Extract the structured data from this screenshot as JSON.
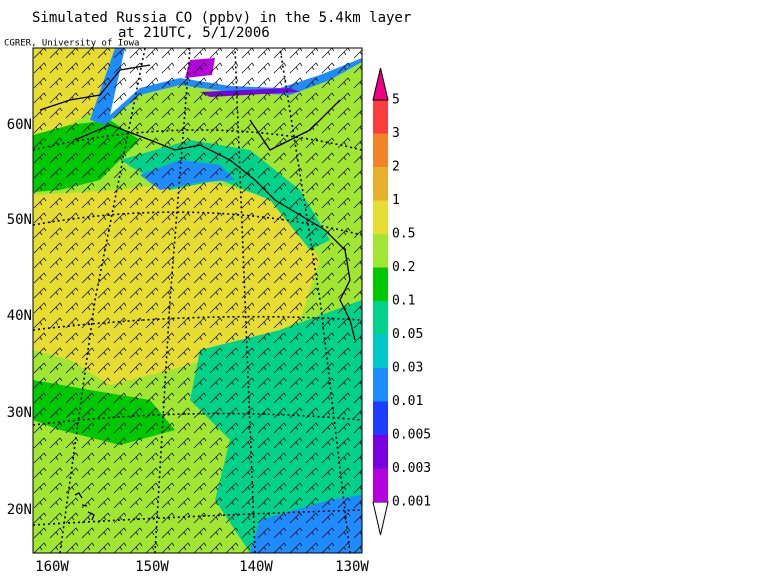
{
  "title": "Simulated Russia CO (ppbv) in the 5.4km layer",
  "subtitle": "at 21UTC, 5/1/2006",
  "credit": "CGRER, University of Iowa",
  "lat_labels": [
    "60N",
    "50N",
    "40N",
    "30N",
    "20N"
  ],
  "lon_labels": [
    "160W",
    "150W",
    "140W",
    "130W"
  ],
  "colorbar": {
    "levels": [
      0.001,
      0.003,
      0.005,
      0.01,
      0.03,
      0.05,
      0.1,
      0.2,
      0.5,
      1,
      2,
      3,
      5
    ],
    "colors": [
      "#ffffff",
      "#b400dc",
      "#7800dc",
      "#1e3cff",
      "#1e8cff",
      "#00c8c8",
      "#00d28c",
      "#00c800",
      "#a0e632",
      "#e6dc32",
      "#e6af2d",
      "#f08228",
      "#fa3c3c",
      "#f00082"
    ]
  }
}
